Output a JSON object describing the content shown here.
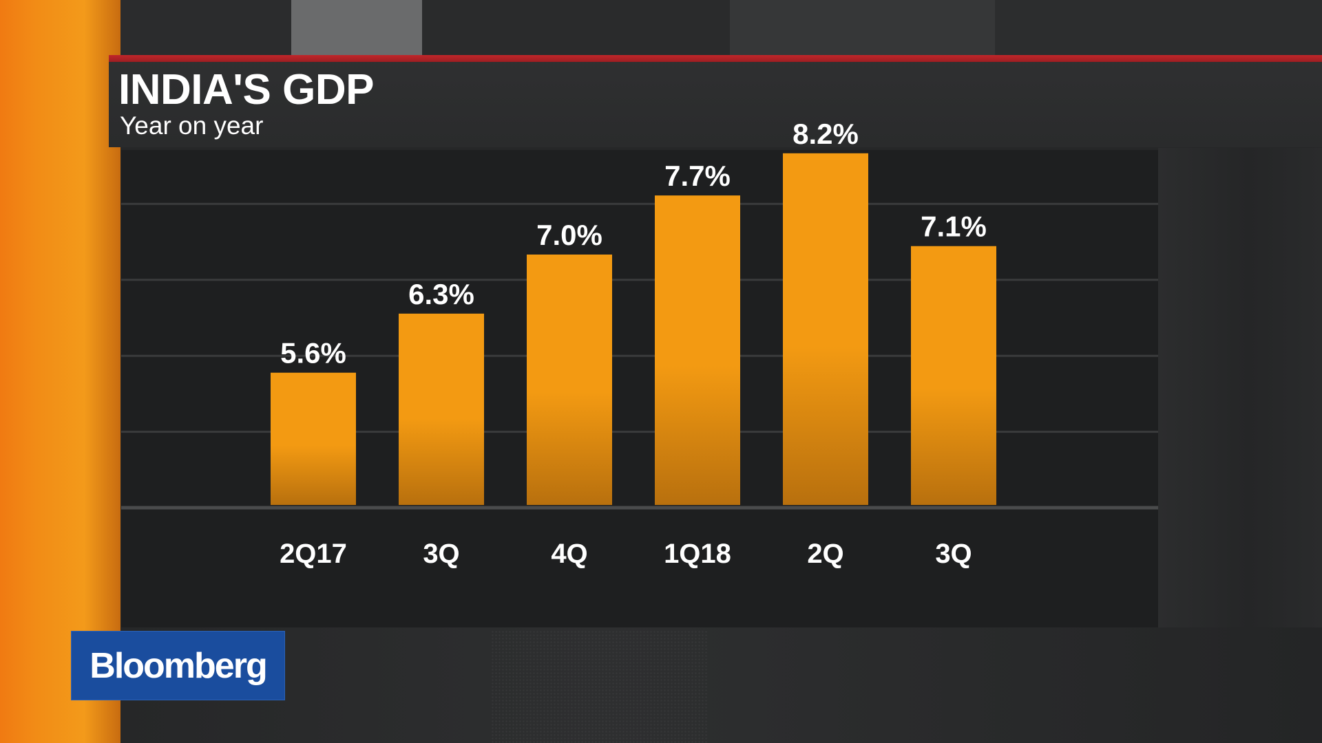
{
  "brand": {
    "name": "Bloomberg",
    "logo_color": "#1a4d9e"
  },
  "colors": {
    "bar_top": "#f39a12",
    "bar_bottom": "#b8700e",
    "accent_orange": "#f28c16",
    "header_rule": "#c0262a",
    "label": "#ffffff"
  },
  "chart_data": {
    "type": "bar",
    "title": "INDIA'S GDP",
    "subtitle": "Year on year",
    "xlabel": "",
    "ylabel": "",
    "categories": [
      "2Q17",
      "3Q",
      "4Q",
      "1Q18",
      "2Q",
      "3Q"
    ],
    "values": [
      5.6,
      6.3,
      7.0,
      7.7,
      8.2,
      7.1
    ],
    "data_labels": [
      "5.6%",
      "6.3%",
      "7.0%",
      "7.7%",
      "8.2%",
      "7.1%"
    ],
    "ylim": [
      4.0,
      8.5
    ],
    "gridlines": [
      4.0,
      4.9,
      5.8,
      6.7,
      7.6
    ],
    "grid": true,
    "legend": "none"
  }
}
